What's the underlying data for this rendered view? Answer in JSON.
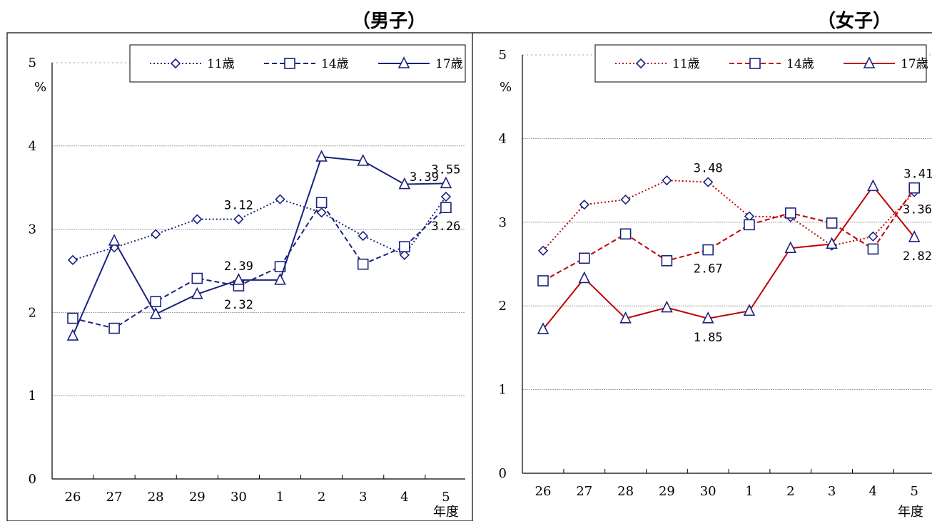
{
  "chart_data": [
    {
      "type": "line",
      "title": "（男子）",
      "ylabel": "%",
      "xlabel": "年度",
      "categories": [
        "26",
        "27",
        "28",
        "29",
        "30",
        "1",
        "2",
        "3",
        "4",
        "5"
      ],
      "ylim": [
        0,
        5
      ],
      "yticks": [
        "0",
        "1",
        "2",
        "3",
        "4",
        "5"
      ],
      "grid": true,
      "legend_position": "top-right",
      "series": [
        {
          "name": "11歳",
          "style": "dotted",
          "marker": "diamond",
          "color": "#1a237e",
          "values": [
            2.63,
            2.78,
            2.94,
            3.12,
            3.12,
            3.36,
            3.2,
            2.92,
            2.69,
            3.39
          ]
        },
        {
          "name": "14歳",
          "style": "dashed",
          "marker": "square",
          "color": "#1a237e",
          "values": [
            1.93,
            1.81,
            2.13,
            2.41,
            2.32,
            2.55,
            3.32,
            2.58,
            2.79,
            3.26
          ]
        },
        {
          "name": "17歳",
          "style": "solid",
          "marker": "triangle",
          "color": "#1a237e",
          "values": [
            1.72,
            2.86,
            1.98,
            2.22,
            2.39,
            2.39,
            3.87,
            3.82,
            3.54,
            3.55
          ]
        }
      ],
      "annotations": [
        {
          "text": "3.12",
          "series": 0,
          "index": 4,
          "pos": "above"
        },
        {
          "text": "2.39",
          "series": 2,
          "index": 4,
          "pos": "above"
        },
        {
          "text": "2.32",
          "series": 1,
          "index": 4,
          "pos": "below"
        },
        {
          "text": "3.55",
          "series": 2,
          "index": 9,
          "pos": "above"
        },
        {
          "text": "3.39",
          "series": 0,
          "index": 9,
          "pos": "left"
        },
        {
          "text": "3.26",
          "series": 1,
          "index": 9,
          "pos": "below"
        }
      ]
    },
    {
      "type": "line",
      "title": "（女子）",
      "ylabel": "%",
      "xlabel": "年度",
      "categories": [
        "26",
        "27",
        "28",
        "29",
        "30",
        "1",
        "2",
        "3",
        "4",
        "5"
      ],
      "ylim": [
        0,
        5
      ],
      "yticks": [
        "0",
        "1",
        "2",
        "3",
        "4",
        "5"
      ],
      "grid": true,
      "legend_position": "top-right",
      "series": [
        {
          "name": "11歳",
          "style": "dotted",
          "marker": "diamond",
          "color": "#c00000",
          "values": [
            2.66,
            3.21,
            3.27,
            3.5,
            3.48,
            3.07,
            3.06,
            2.72,
            2.83,
            3.36
          ]
        },
        {
          "name": "14歳",
          "style": "dashed",
          "marker": "square",
          "color": "#c00000",
          "values": [
            2.3,
            2.57,
            2.86,
            2.54,
            2.67,
            2.97,
            3.11,
            2.99,
            2.68,
            3.41
          ]
        },
        {
          "name": "17歳",
          "style": "solid",
          "marker": "triangle",
          "color": "#c00000",
          "values": [
            1.72,
            2.33,
            1.85,
            1.98,
            1.85,
            1.94,
            2.69,
            2.74,
            3.43,
            2.82
          ]
        }
      ],
      "annotations": [
        {
          "text": "3.48",
          "series": 0,
          "index": 4,
          "pos": "above"
        },
        {
          "text": "2.67",
          "series": 1,
          "index": 4,
          "pos": "below"
        },
        {
          "text": "1.85",
          "series": 2,
          "index": 4,
          "pos": "below"
        },
        {
          "text": "3.41",
          "series": 1,
          "index": 9,
          "pos": "above"
        },
        {
          "text": "3.36",
          "series": 0,
          "index": 9,
          "pos": "right-below"
        },
        {
          "text": "2.82",
          "series": 2,
          "index": 9,
          "pos": "below"
        }
      ]
    }
  ],
  "colors": {
    "marker_edge": "#1a237e",
    "marker_fill": "#ffffff",
    "grid": "#9e9e9e",
    "frame": "#000000"
  }
}
